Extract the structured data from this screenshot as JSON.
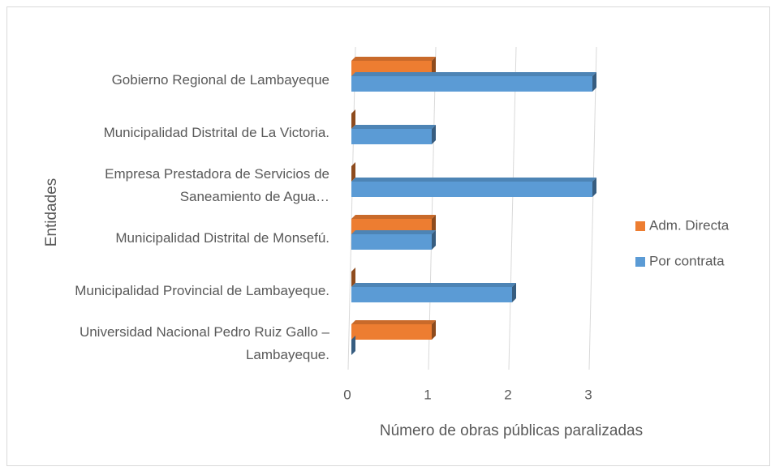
{
  "chart_data": {
    "type": "bar",
    "orientation": "horizontal",
    "x_label": "Número de obras públicas paralizadas",
    "y_label": "Entidades",
    "categories": [
      "Gobierno Regional de Lambayeque",
      "Municipalidad Distrital de La Victoria.",
      "Empresa Prestadora de Servicios de Saneamiento de Agua…",
      "Municipalidad Distrital de Monsefú.",
      "Municipalidad Provincial de Lambayeque.",
      "Universidad Nacional Pedro Ruiz Gallo – Lambayeque."
    ],
    "series": [
      {
        "name": "Adm. Directa",
        "color": "#ED7D31",
        "values": [
          1,
          0,
          0,
          1,
          0,
          1
        ]
      },
      {
        "name": "Por contrata",
        "color": "#5B9BD5",
        "values": [
          3,
          1,
          3,
          1,
          2,
          0
        ]
      }
    ],
    "xlim": [
      0,
      3
    ],
    "xticks": [
      0,
      1,
      2,
      3
    ],
    "grid": true,
    "legend": "right"
  }
}
